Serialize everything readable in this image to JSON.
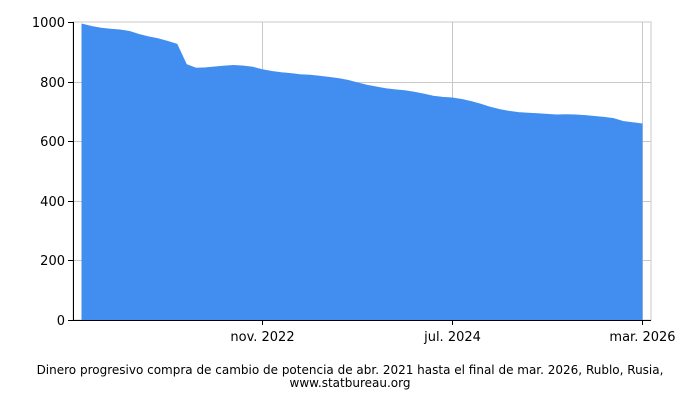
{
  "chart_data": {
    "type": "area",
    "x_tick_labels": [
      "nov. 2022",
      "jul. 2024",
      "mar. 2026"
    ],
    "y_ticks": [
      0,
      200,
      400,
      600,
      800,
      1000
    ],
    "ylim": [
      0,
      1000
    ],
    "x_start": "2021-04",
    "x_end": "2026-03",
    "grid": true,
    "fill_color": "#428ef0",
    "series": [
      {
        "x": [
          "2021-04",
          "2021-05",
          "2021-06",
          "2021-07",
          "2021-08",
          "2021-09",
          "2021-10",
          "2021-11",
          "2021-12",
          "2022-01",
          "2022-02",
          "2022-03",
          "2022-04",
          "2022-05",
          "2022-06",
          "2022-07",
          "2022-08",
          "2022-09",
          "2022-10",
          "2022-11",
          "2022-12",
          "2023-01",
          "2023-02",
          "2023-03",
          "2023-04",
          "2023-05",
          "2023-06",
          "2023-07",
          "2023-08",
          "2023-09",
          "2023-10",
          "2023-11",
          "2023-12",
          "2024-01",
          "2024-02",
          "2024-03",
          "2024-04",
          "2024-05",
          "2024-06",
          "2024-07",
          "2024-08",
          "2024-09",
          "2024-10",
          "2024-11",
          "2024-12",
          "2025-01",
          "2025-02",
          "2025-03",
          "2025-04",
          "2025-05",
          "2025-06",
          "2025-07",
          "2025-08",
          "2025-09",
          "2025-10",
          "2025-11",
          "2025-12",
          "2026-01",
          "2026-02",
          "2026-03"
        ],
        "values": [
          993,
          985,
          979,
          976,
          973,
          968,
          958,
          950,
          944,
          935,
          925,
          857,
          845,
          846,
          849,
          852,
          854,
          852,
          848,
          840,
          834,
          830,
          827,
          823,
          821,
          818,
          814,
          810,
          804,
          796,
          788,
          782,
          776,
          772,
          769,
          764,
          758,
          751,
          747,
          745,
          740,
          733,
          724,
          714,
          706,
          700,
          696,
          694,
          692,
          690,
          688,
          689,
          688,
          686,
          683,
          680,
          676,
          666,
          662,
          658
        ]
      }
    ]
  },
  "caption": "Dinero progresivo compra de cambio de potencia de abr. 2021 hasta el final de mar. 2026, Rublo, Rusia, www.statbureau.org"
}
